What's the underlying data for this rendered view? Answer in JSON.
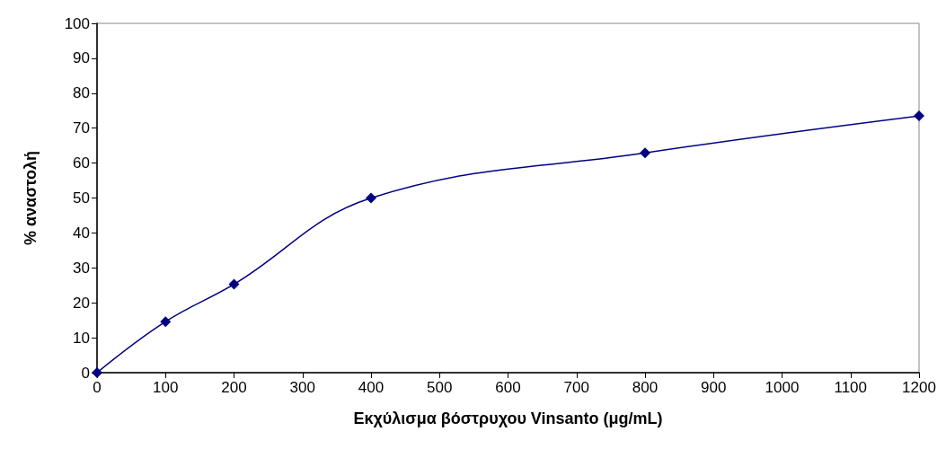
{
  "chart_data": {
    "type": "line",
    "xlabel": "Εκχύλισμα βόστρυχου Vinsanto (μg/mL)",
    "ylabel": "% αναστολή",
    "x": [
      0,
      100,
      200,
      400,
      800,
      1200
    ],
    "series": [
      {
        "color": "#000080",
        "values": [
          0,
          14.6,
          25.3,
          50,
          62.9,
          73.5
        ]
      }
    ],
    "xlim": [
      0,
      1200
    ],
    "xticks": [
      0,
      100,
      200,
      300,
      400,
      500,
      600,
      700,
      800,
      900,
      1000,
      1100,
      1200
    ],
    "ylim": [
      0,
      100
    ],
    "yticks": [
      0,
      10,
      20,
      30,
      40,
      50,
      60,
      70,
      80,
      90,
      100
    ],
    "grid": false,
    "marker": "diamond",
    "line_style": "solid"
  }
}
